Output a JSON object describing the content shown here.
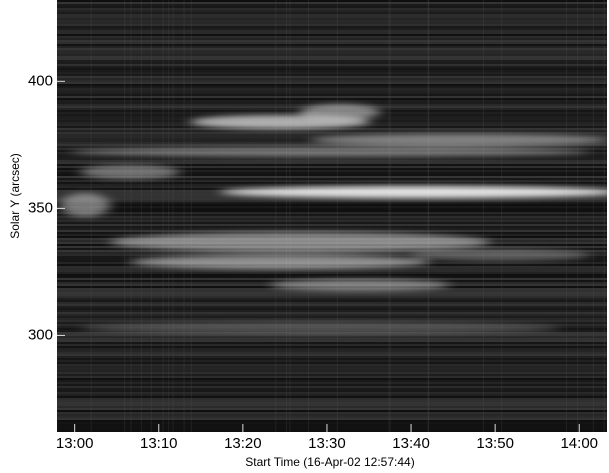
{
  "chart_data": {
    "type": "image",
    "xlabel": "Start Time (16-Apr-02 12:57:44)",
    "ylabel": "Solar Y (arcsec)",
    "xlim": [
      777.9,
      843.3
    ],
    "xticks": [
      {
        "value": 780,
        "label": "13:00"
      },
      {
        "value": 790,
        "label": "13:10"
      },
      {
        "value": 800,
        "label": "13:20"
      },
      {
        "value": 810,
        "label": "13:30"
      },
      {
        "value": 820,
        "label": "13:40"
      },
      {
        "value": 830,
        "label": "13:50"
      },
      {
        "value": 840,
        "label": "14:00"
      }
    ],
    "ylim": [
      262,
      432
    ],
    "yticks": [
      300,
      350,
      400
    ]
  }
}
